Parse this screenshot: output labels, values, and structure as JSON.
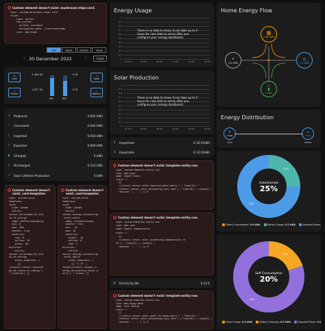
{
  "err_mushroom": {
    "title": "Custom element doesn't exist: mushroom-chips-card.",
    "code": "type: custom:mushroom-chips-card\nchips:\n  - type: action\n    tap_action:\n      action: navigate\n      navigation_path: /lovelace/home\n    icon: mdi:home"
  },
  "date_nav": {
    "periods": [
      "DAY",
      "WEEK",
      "MONTH",
      "YEAR"
    ],
    "date": "30 December 2022",
    "today": "TODAY"
  },
  "distribution_mini": {
    "grid_in": "2,364 W",
    "grid_out": "0 W",
    "solar": "0 W",
    "home_val": "1,527 W",
    "battery_val": "1,527 W",
    "batt_right": "0 W",
    "labels": {
      "grid": "Grid",
      "home": "Home",
      "solar": "Solar",
      "battery": "Battery",
      "inv": "INV",
      "bat": "BAT"
    }
  },
  "energy_list": [
    {
      "icon": "solar-icon",
      "glyph": "☀",
      "label": "Produced",
      "value": "0.002 kWh"
    },
    {
      "icon": "plug-icon",
      "glyph": "⚡",
      "label": "Consumed",
      "value": "0.644 kWh"
    },
    {
      "icon": "import-icon",
      "glyph": "⇩",
      "label": "Imported",
      "value": "0.654 kWh"
    },
    {
      "icon": "export-icon",
      "glyph": "⇧",
      "label": "Exported",
      "value": "0.009 kWh"
    },
    {
      "icon": "charge-icon",
      "glyph": "▮",
      "label": "Charged",
      "value": "0 kWh"
    },
    {
      "icon": "discharge-icon",
      "glyph": "▯",
      "label": "Discharged",
      "value": "0.213 kWh"
    },
    {
      "icon": "lifetime-icon",
      "glyph": "☼",
      "label": "Solar Lifetime Production",
      "value": "0 kWh"
    }
  ],
  "err_left1": {
    "title": "Custom element doesn't exist: card-templater.",
    "code": "type: custom:card-\ntemplater\ncard:\n  type: gauge\n  entity:\nsensor.solaredge_b1_sta\nte_of_energy\n  name: Batteriealadung\n  min: 0\n  max: 100\n  needle: true\n  severity:\n    red: 0\n    yellow: 15\n    green: 50\nentities:\n  - entity:\nsensor.solaredge_b1_sta\nte_of_energy\n    state_template: >\n      {{\n(states('sensor.solared\nge_b1_state_of_energy')\n| float(0)) }}"
  },
  "err_left2": {
    "title": "Custom element doesn't exist: card-templater.",
    "code": "type: custom:card-\ntemplater\ncard:\n  type: gauge\n  entity:\nsensor.energy_accounting\n_total_daily\n  name: Stromrechnung\n  needle: true\n  min: -10\n  max: 10\n  severity:\n    green: -10\n    yellow: 0\n    red: 5\nentities:\n  - entity:\nsensor.energy_accounting\n_total_daily\n    state_template: >\n      {{ '%.2f' |\nformat(states('sensor.e\nnergy_accounting_total_d\naily') | float) }}"
  },
  "energy_usage": {
    "title": "Energy Usage",
    "nodata": "There is no data to show. It can take up to 2 hours for new data to arrive after you configure your energy dashboard.",
    "yticks": [
      "1",
      "0.9",
      "0.8",
      "0.7",
      "0.6",
      "0.5",
      "0.4",
      "0.3",
      "0.2",
      "0.1",
      "0"
    ],
    "xticks": [
      "30 Dec",
      "04:00",
      "08:00",
      "12:00",
      "16:00",
      "20:00"
    ]
  },
  "solar_production": {
    "title": "Solar Production",
    "nodata": "There is no data to show. It can take up to 2 hours for new data to arrive after you configure your energy dashboard.",
    "yticks": [
      "1",
      "0.9",
      "0.8",
      "0.7",
      "0.6",
      "0.5",
      "0.4",
      "0.3",
      "0.2",
      "0.1",
      "0"
    ],
    "xticks": [
      "30 Dec",
      "04:00",
      "08:00",
      "12:00",
      "16:00",
      "20:00"
    ]
  },
  "import_export": [
    {
      "label": "Importiete",
      "value": "0.16 €/kWh"
    },
    {
      "label": "Exportiete",
      "value": "0.13 €/kWh"
    }
  ],
  "err_mid1": {
    "title": "Custom element doesn't exist: template-entity-row.",
    "code": "type: custom:template-entity-row\nicon: mdi:pigu\nname: Import Costs\nstate: >-\n  {{\n  ((states('sensor.solar_imported_power_daily') | float(0)) *\n  (states('sensor.solar_accounting_cost_rate') | float(0)) | round(2) |\n  replace('.', ',') }} €"
  },
  "err_mid2": {
    "title": "Custom element doesn't exist: template-entity-row.",
    "code": "type: custom:template-entity-row\nicon: mdi:cash\nname: Export Compensation\nstate: >-\n  {{\n  ((states('sensor.solar_accounting_compensation_ra\nte') | float(0)) | round(2) |\n  replace('.', ',') }} €"
  },
  "electricity_bill": {
    "label": "Electricity Bill",
    "value": "0.23 €"
  },
  "err_mid3": {
    "title": "Custom element doesn't exist: template-entity-row.",
    "code": "type: custom:template-entity-row\nicon: mdi:piggy-bank\nname: Cost Saving\nstate: >-\n  {{\n  ((states('sensor.solar_panel_to_house_daily') | float(0)) *\n  (states('sensor.solar_accounting_cost_rate') | float(0)) | round(2) |\n  replace('.', ',') }} €"
  },
  "home_flow": {
    "title": "Home Energy Flow",
    "solar_val": "1.38 kWh",
    "grid_val": "3.4 kWh",
    "home_val": "1.3 kWh",
    "battery_pct": "5 %",
    "battery_val": "0 kWh",
    "colors": {
      "solar": "#ff9800",
      "grid": "#9e9e9e",
      "home": "#4d9be6",
      "battery": "#4caf50"
    }
  },
  "distribution": {
    "title": "Energy Distribution",
    "grid_val": "0 kWh",
    "home_val": "0 kWh",
    "grid_label": "Grid",
    "home_label": "Home"
  },
  "chart_data": [
    {
      "type": "pie",
      "title": "Autarkierate",
      "center_value": "25%",
      "slices": [
        {
          "name": "Direct Consumption",
          "value": 0,
          "label": "0.0 kWh",
          "color": "#ff9800"
        },
        {
          "name": "Battery Usage",
          "value": 0.2,
          "label": "0.2 kWh",
          "color": "#4db6ac"
        },
        {
          "name": "Imported Power",
          "value": 0.6,
          "label": "0.6 kWh",
          "color": "#4d9be6"
        }
      ],
      "slice_labels": [
        "25%",
        "75%"
      ]
    },
    {
      "type": "pie",
      "title": "Self Consumption",
      "center_value": "20%",
      "slices": [
        {
          "name": "Direct Usage",
          "value": 0.0,
          "label": "0.0 kWh",
          "color": "#ff9800"
        },
        {
          "name": "Battery Charging",
          "value": 0.0,
          "label": "0.0 kWh",
          "color": "#ff9800"
        },
        {
          "name": "Exported Power",
          "value": 0.0,
          "label": "0.0 kWh",
          "color": "#9370db"
        }
      ],
      "segments": [
        {
          "share": 0.2,
          "color": "#f5a623"
        },
        {
          "share": 0.8,
          "color": "#9370db"
        }
      ],
      "slice_labels": [
        "20%",
        "80%"
      ]
    }
  ]
}
